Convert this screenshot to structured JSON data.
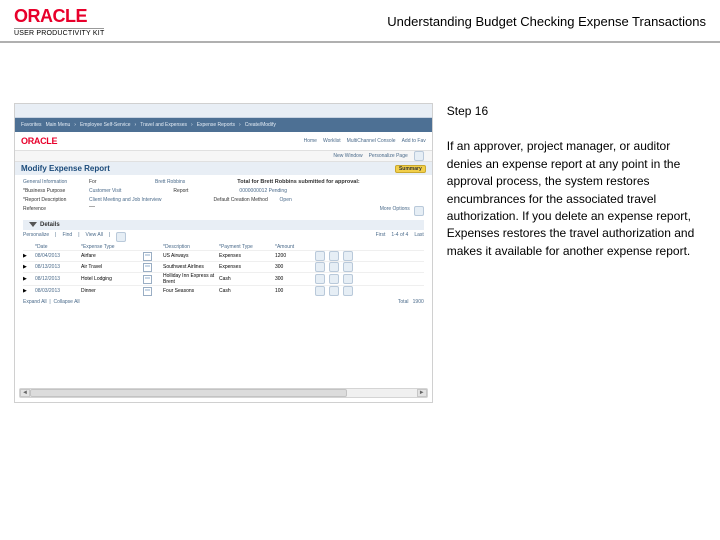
{
  "header": {
    "logo_text": "ORACLE",
    "logo_subtext": "USER PRODUCTIVITY KIT",
    "page_title": "Understanding Budget Checking Expense Transactions"
  },
  "screenshot": {
    "topnav": [
      "Favorites",
      "Main Menu",
      "Employee Self-Service",
      "Travel and Expenses",
      "Expense Reports",
      "Create/Modify"
    ],
    "rightnav": [
      "Home",
      "Worklist",
      "MultiChannel Console",
      "Add to Fav"
    ],
    "logo_small": "ORACLE",
    "user_row": {
      "new_window": "New Window",
      "personalize": "Personalize Page"
    },
    "section_title": "Modify Expense Report",
    "section_action": "Summary",
    "fields": {
      "general_info_label": "General Information",
      "for_label": "For",
      "for_value": "Brett Robbins",
      "total_label": "Total for Brett Robbins submitted for approval:",
      "desc_label": "*Business Purpose",
      "desc_value": "Customer Visit",
      "report_label": "Report",
      "report_value": "0000000012 Pending",
      "desc2_label": "*Report Description",
      "desc2_value": "Client Meeting and Job Interview",
      "default_label": "Default Creation Method",
      "default_value": "Open",
      "reference_label": "Reference",
      "more_options": "More Options"
    },
    "details_title": "Details",
    "line_controls": {
      "personalize": "Personalize",
      "find": "Find",
      "view_all": "View All",
      "first": "First",
      "range": "1-4 of 4",
      "last": "Last"
    },
    "columns": [
      "",
      "*Date",
      "*Expense Type",
      "",
      "*Description",
      "*Payment Type",
      "*Amount",
      "",
      "",
      ""
    ],
    "rows": [
      {
        "date": "08/04/2013",
        "type": "Airfare",
        "desc": "US Airways",
        "pay": "Expenses",
        "amt": "1200"
      },
      {
        "date": "08/13/2013",
        "type": "Air Travel",
        "desc": "Southwest Airlines",
        "pay": "Expenses",
        "amt": "300"
      },
      {
        "date": "08/12/2013",
        "type": "Hotel Lodging",
        "desc": "Holliday Inn Express at Brent",
        "pay": "Cash",
        "amt": "300"
      },
      {
        "date": "08/03/2013",
        "type": "Dinner",
        "desc": "Four Seasons",
        "pay": "Cash",
        "amt": "100"
      }
    ],
    "expand_all": "Expand All",
    "collapse_all": "Collapse All",
    "totals_label": "Total",
    "totals_value": "1900"
  },
  "right": {
    "step": "Step 16",
    "body": "If an approver, project manager, or auditor denies an expense report at any point in the approval process, the system restores encumbrances for the associated travel authorization. If you delete an expense report, Expenses restores the travel authorization and makes it available for another expense report."
  },
  "colors": {
    "oracle_red": "#e8002b",
    "nav_blue": "#4d7094",
    "link_blue": "#4a6a8a",
    "section_bg": "#e8eef5"
  }
}
